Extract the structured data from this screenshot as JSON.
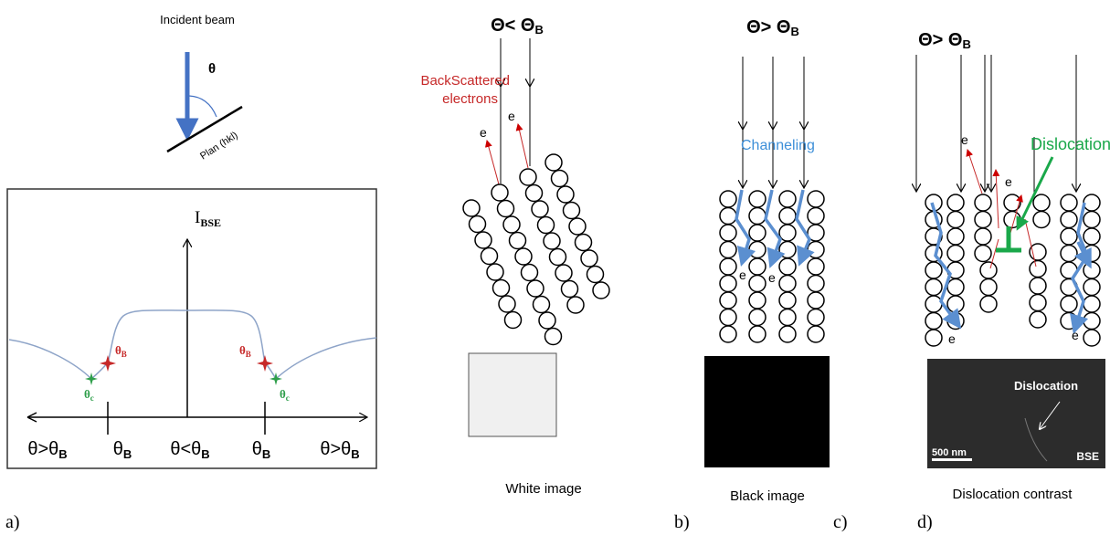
{
  "panel_a": {
    "incident_beam": "Incident beam",
    "theta": "θ",
    "plane": "Plan (hkl)",
    "y_axis": {
      "main": "I",
      "sub": "BSE"
    },
    "curve_labels": [
      {
        "main": "θ",
        "sub": "B"
      },
      {
        "main": "θ",
        "sub": "c"
      },
      {
        "main": "θ",
        "sub": "B"
      },
      {
        "main": "θ",
        "sub": "c"
      }
    ],
    "x_labels": [
      {
        "main": "θ>θ",
        "sub": "B"
      },
      {
        "main": "θ",
        "sub": "B"
      },
      {
        "main": "θ<θ",
        "sub": "B"
      },
      {
        "main": "θ",
        "sub": "B"
      },
      {
        "main": "θ>θ",
        "sub": "B"
      }
    ],
    "label": "a)"
  },
  "panel_b": {
    "title": {
      "main": "Θ< Θ",
      "sub": "B"
    },
    "annotation": [
      "BackScattered",
      "electrons"
    ],
    "electrons": [
      "e",
      "e"
    ],
    "caption": "White image",
    "label": "b)"
  },
  "panel_c": {
    "title": {
      "main": "Θ> Θ",
      "sub": "B"
    },
    "annotation": "Channeling",
    "electrons": [
      "e",
      "e"
    ],
    "caption": "Black image",
    "label": "c)"
  },
  "panel_d": {
    "title": {
      "main": "Θ> Θ",
      "sub": "B"
    },
    "annotation": "Dislocation",
    "electrons": [
      "e",
      "e",
      "e",
      "e"
    ],
    "image": {
      "label": "Dislocation",
      "scale": "500 nm",
      "detector": "BSE"
    },
    "caption": "Dislocation contrast",
    "label": "d)"
  }
}
